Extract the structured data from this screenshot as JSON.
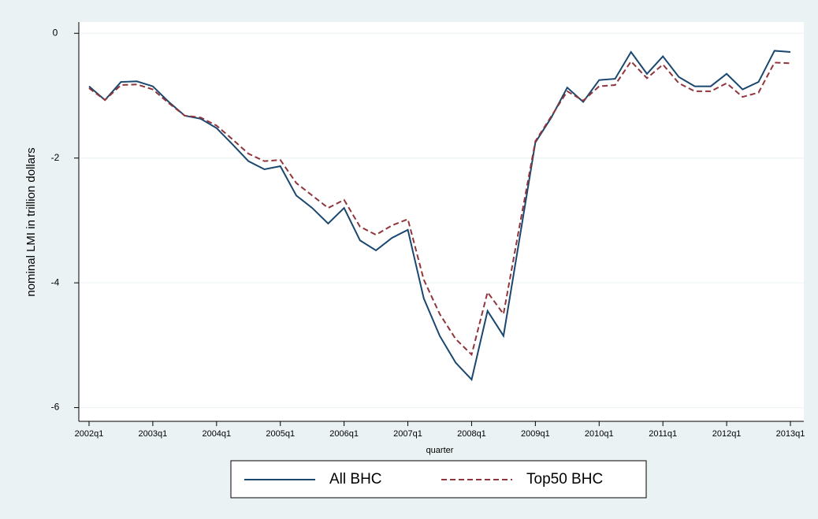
{
  "chart_data": {
    "type": "line",
    "categories": [
      "2002q1",
      null,
      null,
      null,
      "2003q1",
      null,
      null,
      null,
      "2004q1",
      null,
      null,
      null,
      "2005q1",
      null,
      null,
      null,
      "2006q1",
      null,
      null,
      null,
      "2007q1",
      null,
      null,
      null,
      "2008q1",
      null,
      null,
      null,
      "2009q1",
      null,
      null,
      null,
      "2010q1",
      null,
      null,
      null,
      "2011q1",
      null,
      null,
      null,
      "2012q1",
      null,
      null,
      null,
      "2013q1"
    ],
    "series": [
      {
        "name": "All BHC",
        "color": "#1a476f",
        "dash": "solid",
        "values": [
          -0.85,
          -1.07,
          -0.78,
          -0.77,
          -0.85,
          -1.1,
          -1.32,
          -1.37,
          -1.52,
          -1.78,
          -2.05,
          -2.18,
          -2.13,
          -2.6,
          -2.8,
          -3.05,
          -2.8,
          -3.32,
          -3.48,
          -3.28,
          -3.15,
          -4.25,
          -4.85,
          -5.28,
          -5.55,
          -4.45,
          -4.85,
          -3.3,
          -1.75,
          -1.35,
          -0.87,
          -1.1,
          -0.75,
          -0.73,
          -0.3,
          -0.65,
          -0.37,
          -0.7,
          -0.85,
          -0.85,
          -0.65,
          -0.9,
          -0.78,
          -0.28,
          -0.3
        ]
      },
      {
        "name": "Top50 BHC",
        "color": "#90353b",
        "dash": "dashed",
        "values": [
          -0.88,
          -1.07,
          -0.83,
          -0.82,
          -0.9,
          -1.12,
          -1.32,
          -1.35,
          -1.48,
          -1.7,
          -1.93,
          -2.05,
          -2.03,
          -2.4,
          -2.6,
          -2.8,
          -2.67,
          -3.1,
          -3.23,
          -3.08,
          -2.98,
          -3.95,
          -4.5,
          -4.9,
          -5.15,
          -4.15,
          -4.5,
          -3.1,
          -1.73,
          -1.33,
          -0.93,
          -1.08,
          -0.85,
          -0.83,
          -0.45,
          -0.72,
          -0.5,
          -0.8,
          -0.93,
          -0.93,
          -0.8,
          -1.02,
          -0.95,
          -0.47,
          -0.48
        ]
      }
    ],
    "x_label": "quarter",
    "y_label": "nominal LMI in trillion dollars",
    "ylim": [
      -6.22,
      0.18
    ],
    "yticks": [
      0,
      -2,
      -4,
      -6
    ],
    "grid": true,
    "legend": "bottom"
  }
}
